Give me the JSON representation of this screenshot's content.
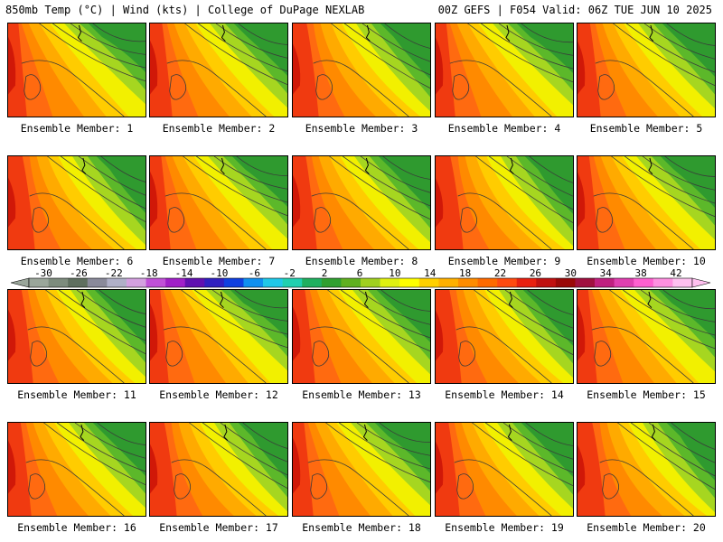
{
  "header": {
    "left": "850mb Temp (°C) | Wind (kts) | College of DuPage NEXLAB",
    "right": "00Z GEFS | F054 Valid: 06Z TUE JUN 10 2025"
  },
  "panels": [
    {
      "label": "Ensemble Member: 1"
    },
    {
      "label": "Ensemble Member: 2"
    },
    {
      "label": "Ensemble Member: 3"
    },
    {
      "label": "Ensemble Member: 4"
    },
    {
      "label": "Ensemble Member: 5"
    },
    {
      "label": "Ensemble Member: 6"
    },
    {
      "label": "Ensemble Member: 7"
    },
    {
      "label": "Ensemble Member: 8"
    },
    {
      "label": "Ensemble Member: 9"
    },
    {
      "label": "Ensemble Member: 10"
    },
    {
      "label": "Ensemble Member: 11"
    },
    {
      "label": "Ensemble Member: 12"
    },
    {
      "label": "Ensemble Member: 13"
    },
    {
      "label": "Ensemble Member: 14"
    },
    {
      "label": "Ensemble Member: 15"
    },
    {
      "label": "Ensemble Member: 16"
    },
    {
      "label": "Ensemble Member: 17"
    },
    {
      "label": "Ensemble Member: 18"
    },
    {
      "label": "Ensemble Member: 19"
    },
    {
      "label": "Ensemble Member: 20"
    }
  ],
  "colorbar": {
    "tick_labels": [
      "-30",
      "-26",
      "-22",
      "-18",
      "-14",
      "-10",
      "-6",
      "-2",
      "2",
      "6",
      "10",
      "14",
      "18",
      "22",
      "26",
      "30",
      "34",
      "38",
      "42"
    ],
    "colors": [
      "#9aa69a",
      "#7d8c7d",
      "#5f6f5f",
      "#8a8a9a",
      "#b0b0c8",
      "#d4a0e0",
      "#c050d8",
      "#a020c8",
      "#6010b0",
      "#3020c0",
      "#1040e0",
      "#1090f0",
      "#20c8e8",
      "#20d0b0",
      "#20b060",
      "#30a030",
      "#60b020",
      "#a0d020",
      "#e0f010",
      "#ffff00",
      "#ffd000",
      "#ffb000",
      "#ff8c00",
      "#ff6a00",
      "#ff4a10",
      "#e82010",
      "#c01010",
      "#9a0808",
      "#a01040",
      "#c02080",
      "#e040b0",
      "#ff60d0",
      "#ff90e0",
      "#ffc0f0"
    ]
  },
  "palette": {
    "green_dark": "#2f9a2f",
    "green": "#5cb82a",
    "lime": "#a6d620",
    "yellow": "#f2f000",
    "gold": "#ffcc00",
    "orange_light": "#ffaa00",
    "orange": "#ff8a00",
    "orange_red": "#ff6a10",
    "red": "#f03a10",
    "red_dark": "#d01808"
  }
}
